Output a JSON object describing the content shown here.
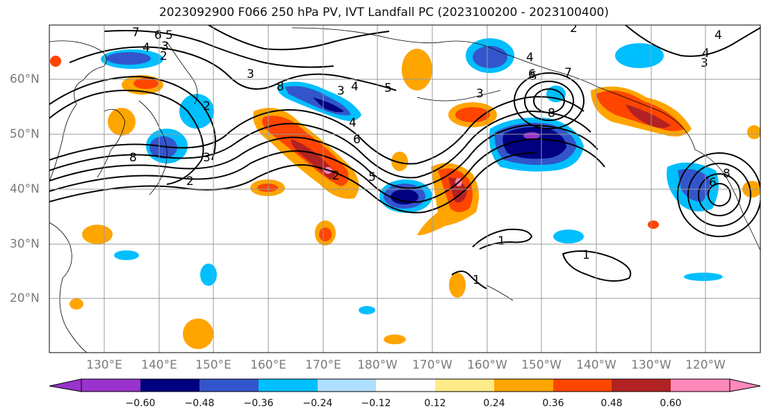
{
  "title": "2023092900 F066 250 hPa PV, IVT Landfall PC (2023100200 - 2023100400)",
  "latitude_labels": [
    "60°N",
    "50°N",
    "40°N",
    "30°N",
    "20°N"
  ],
  "longitude_labels": [
    "130°E",
    "140°E",
    "150°E",
    "160°E",
    "170°E",
    "180°W",
    "170°W",
    "160°W",
    "150°W",
    "140°W",
    "130°W",
    "120°W"
  ],
  "colorbar": {
    "ticks": [
      "−0.60",
      "−0.48",
      "−0.36",
      "−0.24",
      "−0.12",
      "0.12",
      "0.24",
      "0.36",
      "0.48",
      "0.60"
    ],
    "colors": [
      "#9933cc",
      "#000080",
      "#3355cc",
      "#00bfff",
      "#b0e0ff",
      "#ffffff",
      "#ffeb88",
      "#ffa500",
      "#ff4500",
      "#b22222",
      "#ff88bb"
    ]
  },
  "contour_labels": [
    "7",
    "6",
    "5",
    "4",
    "3",
    "2",
    "2",
    "3",
    "4",
    "5",
    "3",
    "8",
    "2",
    "3",
    "2",
    "8",
    "4",
    "3",
    "4",
    "5",
    "6",
    "5",
    "1",
    "1",
    "1",
    "8",
    "7",
    "6",
    "4",
    "2",
    "8",
    "6",
    "4",
    "3"
  ]
}
